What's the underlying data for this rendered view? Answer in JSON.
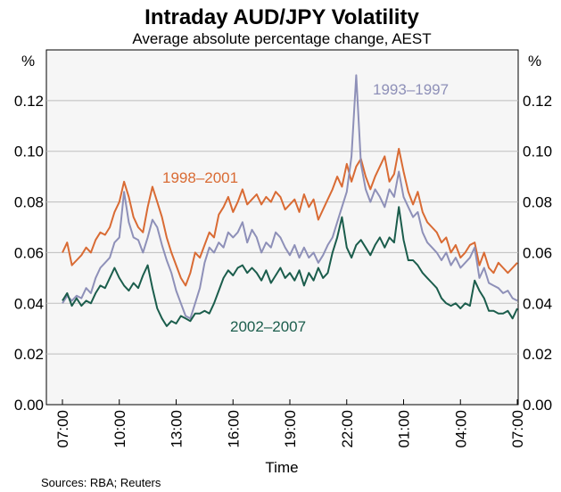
{
  "chart_data": {
    "type": "line",
    "title": "Intraday AUD/JPY Volatility",
    "subtitle": "Average absolute percentage change, AEST",
    "xlabel": "Time",
    "ylabel_left": "%",
    "ylabel_right": "%",
    "source": "Sources: RBA; Reuters",
    "ylim": [
      0,
      0.14
    ],
    "yticks": [
      "0.00",
      "0.02",
      "0.04",
      "0.06",
      "0.08",
      "0.10",
      "0.12"
    ],
    "xticks": [
      "07:00",
      "10:00",
      "13:00",
      "16:00",
      "19:00",
      "22:00",
      "01:00",
      "04:00",
      "07:00"
    ],
    "grid": true,
    "series": [
      {
        "name": "1998–2001",
        "color": "#d96b34",
        "label_text": "1998–2001",
        "x_hours": [
          0,
          0.25,
          0.5,
          0.75,
          1,
          1.25,
          1.5,
          1.75,
          2,
          2.25,
          2.5,
          2.75,
          3,
          3.25,
          3.5,
          3.75,
          4,
          4.25,
          4.5,
          4.75,
          5,
          5.25,
          5.5,
          5.75,
          6,
          6.25,
          6.5,
          6.75,
          7,
          7.25,
          7.5,
          7.75,
          8,
          8.25,
          8.5,
          8.75,
          9,
          9.25,
          9.5,
          9.75,
          10,
          10.25,
          10.5,
          10.75,
          11,
          11.25,
          11.5,
          11.75,
          12,
          12.25,
          12.5,
          12.75,
          13,
          13.25,
          13.5,
          13.75,
          14,
          14.25,
          14.5,
          14.75,
          15,
          15.25,
          15.5,
          15.75,
          16,
          16.25,
          16.5,
          16.75,
          17,
          17.25,
          17.5,
          17.75,
          18,
          18.25,
          18.5,
          18.75,
          19,
          19.25,
          19.5,
          19.75,
          20,
          20.25,
          20.5,
          20.75,
          21,
          21.25,
          21.5,
          21.75,
          22,
          22.25,
          22.5,
          22.75,
          23,
          23.25,
          23.5,
          23.75,
          24
        ],
        "values": [
          0.06,
          0.064,
          0.055,
          0.057,
          0.059,
          0.062,
          0.06,
          0.065,
          0.068,
          0.067,
          0.07,
          0.076,
          0.08,
          0.088,
          0.082,
          0.074,
          0.07,
          0.068,
          0.078,
          0.086,
          0.08,
          0.074,
          0.066,
          0.06,
          0.055,
          0.05,
          0.047,
          0.052,
          0.06,
          0.058,
          0.063,
          0.068,
          0.066,
          0.075,
          0.078,
          0.082,
          0.076,
          0.08,
          0.085,
          0.079,
          0.081,
          0.083,
          0.079,
          0.082,
          0.08,
          0.084,
          0.082,
          0.077,
          0.079,
          0.081,
          0.076,
          0.083,
          0.078,
          0.081,
          0.073,
          0.077,
          0.081,
          0.085,
          0.09,
          0.086,
          0.095,
          0.088,
          0.094,
          0.097,
          0.09,
          0.085,
          0.09,
          0.094,
          0.098,
          0.088,
          0.091,
          0.101,
          0.092,
          0.084,
          0.079,
          0.084,
          0.076,
          0.072,
          0.07,
          0.068,
          0.064,
          0.066,
          0.06,
          0.063,
          0.058,
          0.06,
          0.063,
          0.064,
          0.055,
          0.06,
          0.054,
          0.052,
          0.056,
          0.054,
          0.052,
          0.054,
          0.056
        ]
      },
      {
        "name": "1993–1997",
        "color": "#8e90b8",
        "label_text": "1993–1997",
        "x_hours": [
          0,
          0.25,
          0.5,
          0.75,
          1,
          1.25,
          1.5,
          1.75,
          2,
          2.25,
          2.5,
          2.75,
          3,
          3.25,
          3.5,
          3.75,
          4,
          4.25,
          4.5,
          4.75,
          5,
          5.25,
          5.5,
          5.75,
          6,
          6.25,
          6.5,
          6.75,
          7,
          7.25,
          7.5,
          7.75,
          8,
          8.25,
          8.5,
          8.75,
          9,
          9.25,
          9.5,
          9.75,
          10,
          10.25,
          10.5,
          10.75,
          11,
          11.25,
          11.5,
          11.75,
          12,
          12.25,
          12.5,
          12.75,
          13,
          13.25,
          13.5,
          13.75,
          14,
          14.25,
          14.5,
          14.75,
          15,
          15.25,
          15.5,
          15.75,
          16,
          16.25,
          16.5,
          16.75,
          17,
          17.25,
          17.5,
          17.75,
          18,
          18.25,
          18.5,
          18.75,
          19,
          19.25,
          19.5,
          19.75,
          20,
          20.25,
          20.5,
          20.75,
          21,
          21.25,
          21.5,
          21.75,
          22,
          22.25,
          22.5,
          22.75,
          23,
          23.25,
          23.5,
          23.75,
          24
        ],
        "values": [
          0.04,
          0.043,
          0.041,
          0.043,
          0.042,
          0.046,
          0.044,
          0.05,
          0.054,
          0.056,
          0.058,
          0.064,
          0.066,
          0.084,
          0.072,
          0.066,
          0.065,
          0.06,
          0.066,
          0.073,
          0.07,
          0.063,
          0.057,
          0.052,
          0.045,
          0.04,
          0.035,
          0.034,
          0.04,
          0.046,
          0.056,
          0.062,
          0.06,
          0.064,
          0.062,
          0.068,
          0.066,
          0.068,
          0.072,
          0.064,
          0.069,
          0.066,
          0.06,
          0.064,
          0.062,
          0.068,
          0.066,
          0.062,
          0.059,
          0.063,
          0.058,
          0.062,
          0.058,
          0.06,
          0.056,
          0.059,
          0.063,
          0.066,
          0.072,
          0.078,
          0.084,
          0.098,
          0.13,
          0.095,
          0.085,
          0.08,
          0.085,
          0.082,
          0.078,
          0.085,
          0.082,
          0.092,
          0.082,
          0.078,
          0.074,
          0.076,
          0.068,
          0.064,
          0.062,
          0.06,
          0.057,
          0.06,
          0.055,
          0.058,
          0.054,
          0.056,
          0.058,
          0.062,
          0.05,
          0.054,
          0.048,
          0.047,
          0.046,
          0.044,
          0.045,
          0.042,
          0.041
        ]
      },
      {
        "name": "2002–2007",
        "color": "#1b5d4c",
        "label_text": "2002–2007",
        "x_hours": [
          0,
          0.25,
          0.5,
          0.75,
          1,
          1.25,
          1.5,
          1.75,
          2,
          2.25,
          2.5,
          2.75,
          3,
          3.25,
          3.5,
          3.75,
          4,
          4.25,
          4.5,
          4.75,
          5,
          5.25,
          5.5,
          5.75,
          6,
          6.25,
          6.5,
          6.75,
          7,
          7.25,
          7.5,
          7.75,
          8,
          8.25,
          8.5,
          8.75,
          9,
          9.25,
          9.5,
          9.75,
          10,
          10.25,
          10.5,
          10.75,
          11,
          11.25,
          11.5,
          11.75,
          12,
          12.25,
          12.5,
          12.75,
          13,
          13.25,
          13.5,
          13.75,
          14,
          14.25,
          14.5,
          14.75,
          15,
          15.25,
          15.5,
          15.75,
          16,
          16.25,
          16.5,
          16.75,
          17,
          17.25,
          17.5,
          17.75,
          18,
          18.25,
          18.5,
          18.75,
          19,
          19.25,
          19.5,
          19.75,
          20,
          20.25,
          20.5,
          20.75,
          21,
          21.25,
          21.5,
          21.75,
          22,
          22.25,
          22.5,
          22.75,
          23,
          23.25,
          23.5,
          23.75,
          24
        ],
        "values": [
          0.041,
          0.044,
          0.039,
          0.042,
          0.039,
          0.041,
          0.04,
          0.044,
          0.047,
          0.046,
          0.05,
          0.054,
          0.05,
          0.047,
          0.045,
          0.048,
          0.046,
          0.051,
          0.055,
          0.046,
          0.038,
          0.034,
          0.031,
          0.033,
          0.032,
          0.035,
          0.034,
          0.033,
          0.036,
          0.036,
          0.037,
          0.036,
          0.04,
          0.045,
          0.05,
          0.053,
          0.051,
          0.054,
          0.055,
          0.052,
          0.054,
          0.052,
          0.049,
          0.053,
          0.048,
          0.051,
          0.054,
          0.05,
          0.052,
          0.049,
          0.053,
          0.047,
          0.052,
          0.049,
          0.054,
          0.05,
          0.052,
          0.06,
          0.066,
          0.074,
          0.062,
          0.058,
          0.063,
          0.065,
          0.062,
          0.059,
          0.063,
          0.066,
          0.062,
          0.066,
          0.064,
          0.078,
          0.065,
          0.057,
          0.057,
          0.055,
          0.052,
          0.05,
          0.048,
          0.046,
          0.042,
          0.04,
          0.039,
          0.04,
          0.038,
          0.04,
          0.039,
          0.049,
          0.045,
          0.042,
          0.037,
          0.037,
          0.036,
          0.036,
          0.037,
          0.034,
          0.038
        ]
      }
    ]
  }
}
